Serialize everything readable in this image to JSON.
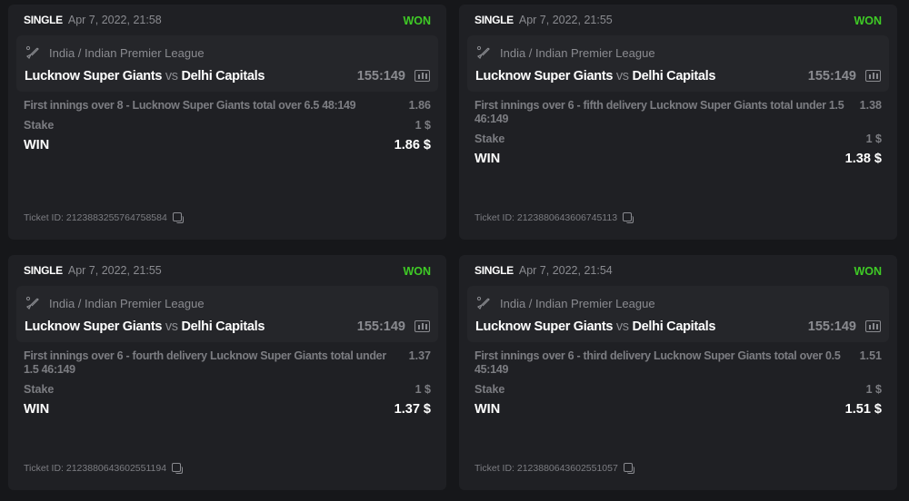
{
  "colors": {
    "won": "#3fcb26",
    "card": "#1f2024",
    "background": "#16171a"
  },
  "bets": [
    {
      "type": "SINGLE",
      "date": "Apr 7, 2022, 21:58",
      "status": "WON",
      "league": "India / Indian Premier League",
      "home": "Lucknow Super Giants",
      "vs": "vs",
      "away": "Delhi Capitals",
      "score": "155:149",
      "market": "First innings over 8 - Lucknow Super Giants total over 6.5  48:149",
      "odds": "1.86",
      "stake_label": "Stake",
      "stake": "1 $",
      "win_label": "WIN",
      "win": "1.86 $",
      "ticket": "Ticket ID: 2123883255764758584"
    },
    {
      "type": "SINGLE",
      "date": "Apr 7, 2022, 21:55",
      "status": "WON",
      "league": "India / Indian Premier League",
      "home": "Lucknow Super Giants",
      "vs": "vs",
      "away": "Delhi Capitals",
      "score": "155:149",
      "market": "First innings over 6 - fifth delivery Lucknow Super Giants total under 1.5  46:149",
      "odds": "1.38",
      "stake_label": "Stake",
      "stake": "1 $",
      "win_label": "WIN",
      "win": "1.38 $",
      "ticket": "Ticket ID: 2123880643606745113"
    },
    {
      "type": "SINGLE",
      "date": "Apr 7, 2022, 21:55",
      "status": "WON",
      "league": "India / Indian Premier League",
      "home": "Lucknow Super Giants",
      "vs": "vs",
      "away": "Delhi Capitals",
      "score": "155:149",
      "market": "First innings over 6 - fourth delivery Lucknow Super Giants total under 1.5  46:149",
      "odds": "1.37",
      "stake_label": "Stake",
      "stake": "1 $",
      "win_label": "WIN",
      "win": "1.37 $",
      "ticket": "Ticket ID: 2123880643602551194"
    },
    {
      "type": "SINGLE",
      "date": "Apr 7, 2022, 21:54",
      "status": "WON",
      "league": "India / Indian Premier League",
      "home": "Lucknow Super Giants",
      "vs": "vs",
      "away": "Delhi Capitals",
      "score": "155:149",
      "market": "First innings over 6 - third delivery Lucknow Super Giants total over 0.5  45:149",
      "odds": "1.51",
      "stake_label": "Stake",
      "stake": "1 $",
      "win_label": "WIN",
      "win": "1.51 $",
      "ticket": "Ticket ID: 2123880643602551057"
    }
  ]
}
